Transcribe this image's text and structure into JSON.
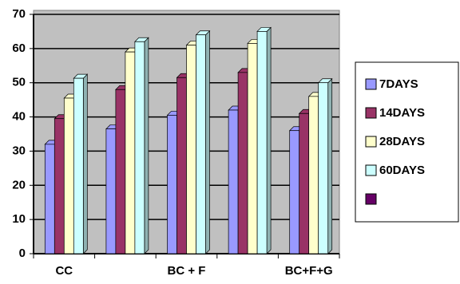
{
  "chart_data": {
    "type": "bar",
    "categories": [
      "CC",
      null,
      "BC + F",
      null,
      "BC+F+G"
    ],
    "series": [
      {
        "name": "7DAYS",
        "color": "#9999ff",
        "values": [
          32,
          36.5,
          40.5,
          42,
          36
        ]
      },
      {
        "name": "14DAYS",
        "color": "#993366",
        "values": [
          39.5,
          48,
          51.5,
          53,
          41
        ]
      },
      {
        "name": "28DAYS",
        "color": "#ffffcc",
        "values": [
          45.5,
          59,
          61,
          61.5,
          46
        ]
      },
      {
        "name": "60DAYS",
        "color": "#ccffff",
        "values": [
          51.3,
          62,
          64,
          65,
          50
        ]
      },
      {
        "name": null,
        "color": "#660066",
        "values": [
          null,
          null,
          null,
          null,
          null
        ]
      }
    ],
    "ylim": [
      0,
      70
    ],
    "yticks": [
      0,
      10,
      20,
      30,
      40,
      50,
      60,
      70
    ],
    "grid": true,
    "plot_background": "#c0c0c0",
    "legend": "right"
  }
}
